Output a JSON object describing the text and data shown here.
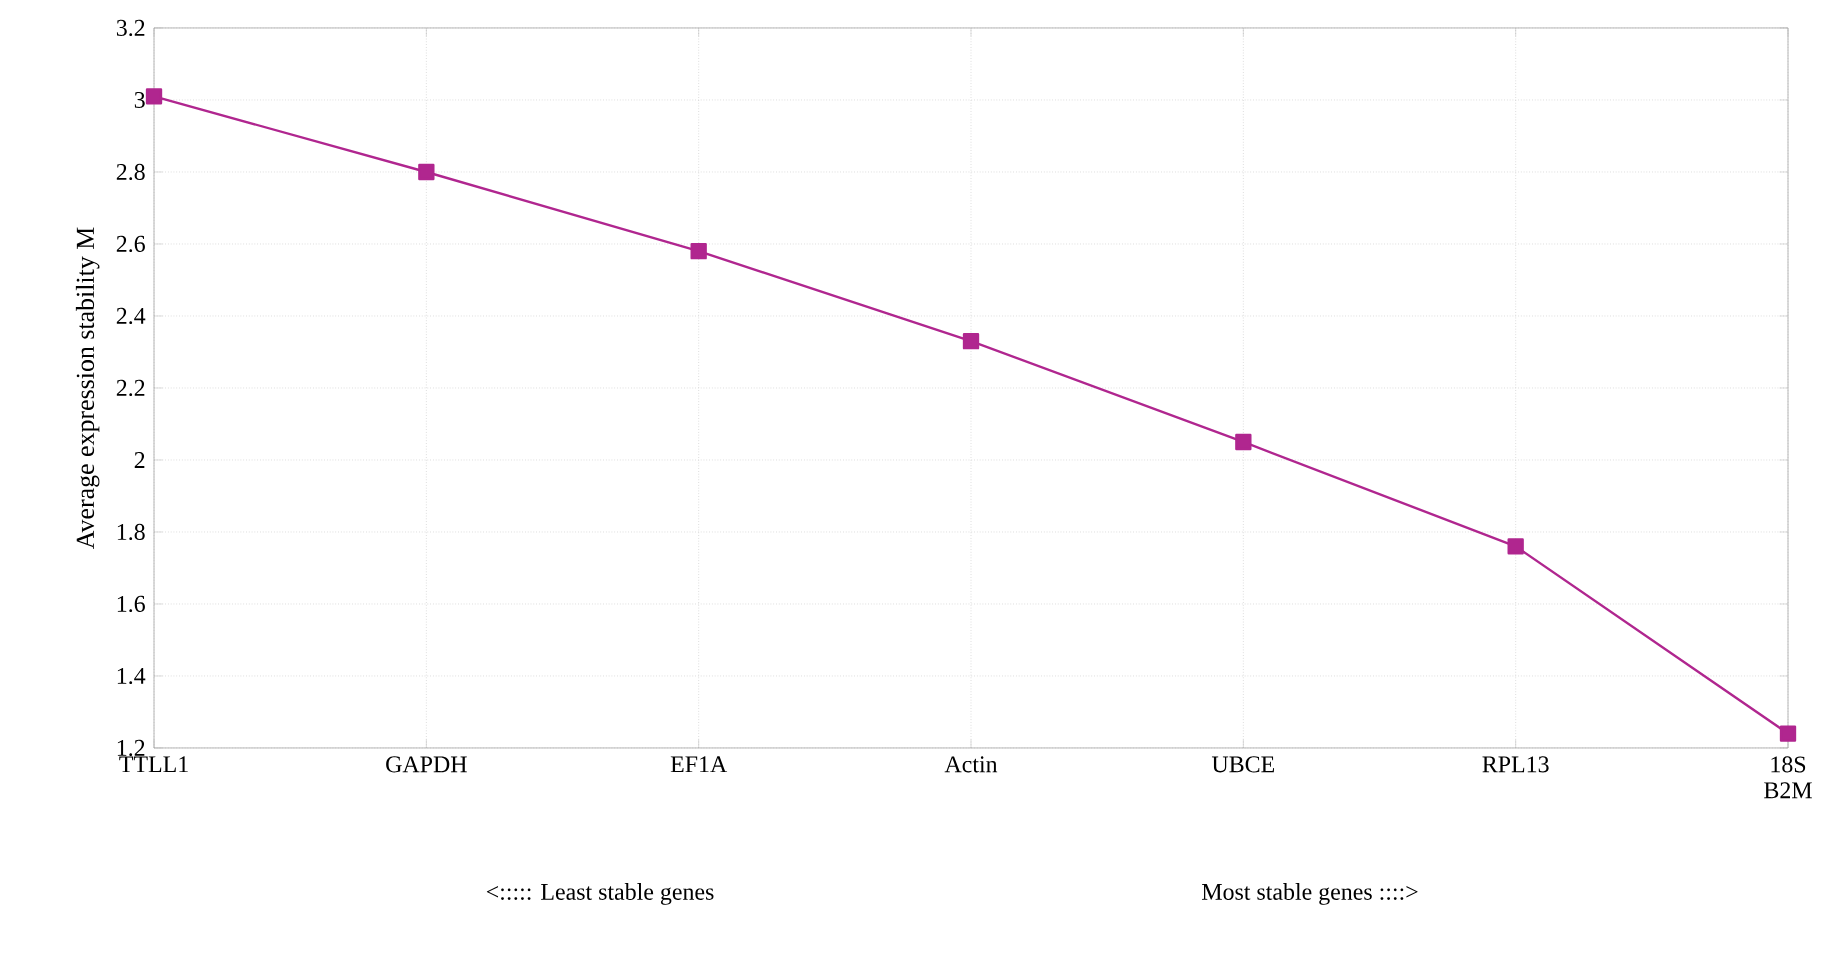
{
  "chart_data": {
    "type": "line",
    "ylabel": "Average expression stability M",
    "categories": [
      "TTLL1",
      "GAPDH",
      "EF1A",
      "Actin",
      "UBCE",
      "RPL13",
      "18S B2M"
    ],
    "series": [
      {
        "color": "#b0268f",
        "values": [
          3.01,
          2.8,
          2.58,
          2.33,
          2.05,
          1.76,
          1.24
        ]
      }
    ],
    "ylim": [
      1.2,
      3.2
    ],
    "yticks": [
      1.2,
      1.4,
      1.6,
      1.8,
      2,
      2.2,
      2.4,
      2.6,
      2.8,
      3,
      3.2
    ],
    "grid": true,
    "marker": "square",
    "line_style": "solid",
    "annotations": [
      "<::::: Least stable genes",
      "Most stable genes ::::>"
    ]
  }
}
